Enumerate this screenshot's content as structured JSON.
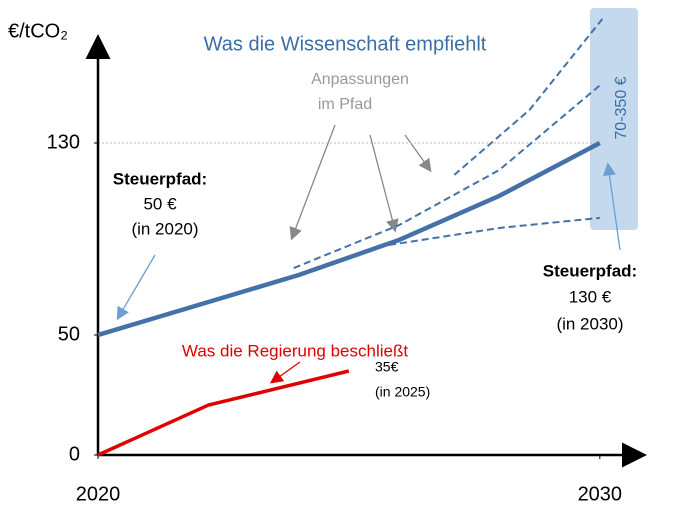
{
  "chart_data": {
    "type": "line",
    "ylabel": "€/tCO₂",
    "xlim": [
      2020,
      2031
    ],
    "xticks": [
      2020,
      2030
    ],
    "ylim": [
      0,
      175
    ],
    "yticks": [
      0,
      50,
      130
    ],
    "hline": 130,
    "series": [
      {
        "color": "#4472a8",
        "style": "solid",
        "x": [
          2020,
          2022,
          2024,
          2026,
          2028,
          2030
        ],
        "values": [
          50,
          62.5,
          75,
          89.6,
          108,
          130
        ]
      },
      {
        "color": "#e00000",
        "style": "solid",
        "x": [
          2020,
          2022.2,
          2025
        ],
        "values": [
          0,
          20.8,
          35
        ]
      },
      {
        "color": "#4472a8",
        "style": "dashed",
        "x": [
          2027.1,
          2028.6,
          2030.1
        ],
        "values": [
          116.7,
          143.8,
          183
        ]
      },
      {
        "color": "#4472a8",
        "style": "dashed",
        "x": [
          2023.9,
          2026,
          2028,
          2030
        ],
        "values": [
          77.9,
          95.8,
          118.8,
          154
        ]
      },
      {
        "color": "#4472a8",
        "style": "dashed",
        "x": [
          2025.8,
          2028,
          2030
        ],
        "values": [
          87.5,
          94.6,
          98.8
        ]
      }
    ],
    "annotations": [
      "Was die Wissenschaft empfiehlt",
      "Anpassungen",
      "im Pfad",
      "Steuerpfad:",
      "50 €",
      "(in 2020)",
      "Steuerpfad:",
      "130 €",
      "(in 2030)",
      "Was die Regierung beschließt",
      "35€",
      "(in 2025)",
      "70-350 €"
    ]
  }
}
